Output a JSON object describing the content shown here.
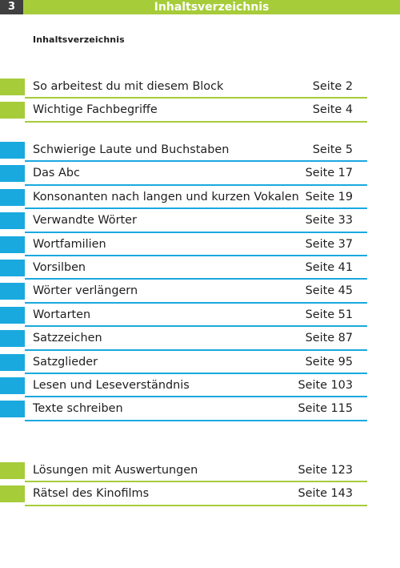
{
  "header": {
    "page_number": "3",
    "title": "Inhaltsverzeichnis"
  },
  "subtitle": "Inhaltsverzeichnis",
  "colors": {
    "green": "#a6cc3a",
    "blue": "#1aa9df",
    "page_number_bg": "#3f3f3f"
  },
  "toc": {
    "intro": [
      {
        "label": "So arbeitest du mit diesem Block",
        "page": "Seite 2"
      },
      {
        "label": "Wichtige Fachbegriffe",
        "page": "Seite 4"
      }
    ],
    "chapters": [
      {
        "label": "Schwierige Laute und Buchstaben",
        "page": "Seite 5"
      },
      {
        "label": "Das Abc",
        "page": "Seite 17"
      },
      {
        "label": "Konsonanten nach langen und kurzen Vokalen",
        "page": "Seite 19"
      },
      {
        "label": "Verwandte Wörter",
        "page": "Seite 33"
      },
      {
        "label": "Wortfamilien",
        "page": "Seite 37"
      },
      {
        "label": "Vorsilben",
        "page": "Seite 41"
      },
      {
        "label": "Wörter verlängern",
        "page": "Seite 45"
      },
      {
        "label": "Wortarten",
        "page": "Seite 51"
      },
      {
        "label": "Satzzeichen",
        "page": "Seite 87"
      },
      {
        "label": "Satzglieder",
        "page": "Seite 95"
      },
      {
        "label": "Lesen und Leseverständnis",
        "page": "Seite 103"
      },
      {
        "label": "Texte schreiben",
        "page": "Seite 115"
      }
    ],
    "appendix": [
      {
        "label": "Lösungen mit Auswertungen",
        "page": "Seite 123"
      },
      {
        "label": "Rätsel des Kinofilms",
        "page": "Seite 143"
      }
    ]
  }
}
